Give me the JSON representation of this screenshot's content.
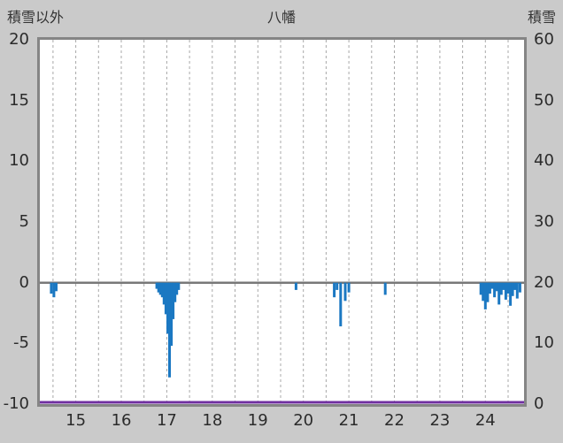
{
  "header": {
    "left_label": "積雪以外",
    "title": "八幡",
    "right_label": "積雪"
  },
  "chart_data": {
    "type": "bar",
    "title": "八幡",
    "x_axis": {
      "unit": "day of month",
      "min": 14.71,
      "max": 25.35,
      "grid_start": 15.0,
      "grid_step": 0.5,
      "grid_end": 25.0,
      "ticks": [
        {
          "label": "15",
          "pos": 15.5
        },
        {
          "label": "16",
          "pos": 16.5
        },
        {
          "label": "17",
          "pos": 17.5
        },
        {
          "label": "18",
          "pos": 18.5
        },
        {
          "label": "19",
          "pos": 19.5
        },
        {
          "label": "20",
          "pos": 20.5
        },
        {
          "label": "21",
          "pos": 21.5
        },
        {
          "label": "22",
          "pos": 22.5
        },
        {
          "label": "23",
          "pos": 23.5
        },
        {
          "label": "24",
          "pos": 24.5
        }
      ]
    },
    "left_axis": {
      "label": "積雪以外",
      "min": -10,
      "max": 20,
      "ticks": [
        {
          "label": "20",
          "value": 20
        },
        {
          "label": "15",
          "value": 15
        },
        {
          "label": "10",
          "value": 10
        },
        {
          "label": "5",
          "value": 5
        },
        {
          "label": "0",
          "value": 0
        },
        {
          "label": "-5",
          "value": -5
        },
        {
          "label": "-10",
          "value": -10
        }
      ]
    },
    "right_axis": {
      "label": "積雪",
      "min": 0,
      "max": 60,
      "ticks": [
        {
          "label": "60",
          "value": 60
        },
        {
          "label": "50",
          "value": 50
        },
        {
          "label": "40",
          "value": 40
        },
        {
          "label": "30",
          "value": 30
        },
        {
          "label": "20",
          "value": 20
        },
        {
          "label": "10",
          "value": 10
        },
        {
          "label": "0",
          "value": 0
        }
      ]
    },
    "zero_line_value": 0,
    "colors": {
      "background": "#cacaca",
      "plot_background": "#ffffff",
      "border": "#858585",
      "grid": "#a8a8a8",
      "zero_line": "#787878",
      "bar": "#1b78c2",
      "snow_line": "#7030a0",
      "text": "#2b2b2b"
    },
    "series": [
      {
        "name": "積雪以外",
        "type": "bar",
        "axis": "left",
        "color": "#1b78c2",
        "points": [
          [
            14.96,
            -0.9
          ],
          [
            15.02,
            -1.2
          ],
          [
            15.07,
            -0.7
          ],
          [
            17.28,
            -0.5
          ],
          [
            17.32,
            -0.8
          ],
          [
            17.36,
            -1.0
          ],
          [
            17.4,
            -1.2
          ],
          [
            17.44,
            -1.8
          ],
          [
            17.48,
            -2.6
          ],
          [
            17.52,
            -4.2
          ],
          [
            17.56,
            -7.8
          ],
          [
            17.6,
            -5.2
          ],
          [
            17.64,
            -3.0
          ],
          [
            17.68,
            -1.6
          ],
          [
            17.72,
            -1.0
          ],
          [
            17.76,
            -0.6
          ],
          [
            20.34,
            -0.6
          ],
          [
            21.18,
            -1.2
          ],
          [
            21.24,
            -0.6
          ],
          [
            21.32,
            -3.6
          ],
          [
            21.42,
            -1.5
          ],
          [
            21.5,
            -0.8
          ],
          [
            22.3,
            -1.0
          ],
          [
            24.4,
            -1.0
          ],
          [
            24.45,
            -1.5
          ],
          [
            24.5,
            -2.2
          ],
          [
            24.55,
            -1.6
          ],
          [
            24.6,
            -0.9
          ],
          [
            24.65,
            -0.5
          ],
          [
            24.7,
            -1.2
          ],
          [
            24.75,
            -0.7
          ],
          [
            24.8,
            -1.8
          ],
          [
            24.85,
            -1.0
          ],
          [
            24.9,
            -0.6
          ],
          [
            24.95,
            -1.4
          ],
          [
            25.0,
            -0.9
          ],
          [
            25.05,
            -1.9
          ],
          [
            25.1,
            -1.1
          ],
          [
            25.15,
            -0.6
          ],
          [
            25.2,
            -1.3
          ],
          [
            25.26,
            -0.8
          ]
        ]
      },
      {
        "name": "積雪",
        "type": "line",
        "axis": "right",
        "color": "#7030a0",
        "constant_value": 0
      }
    ]
  }
}
